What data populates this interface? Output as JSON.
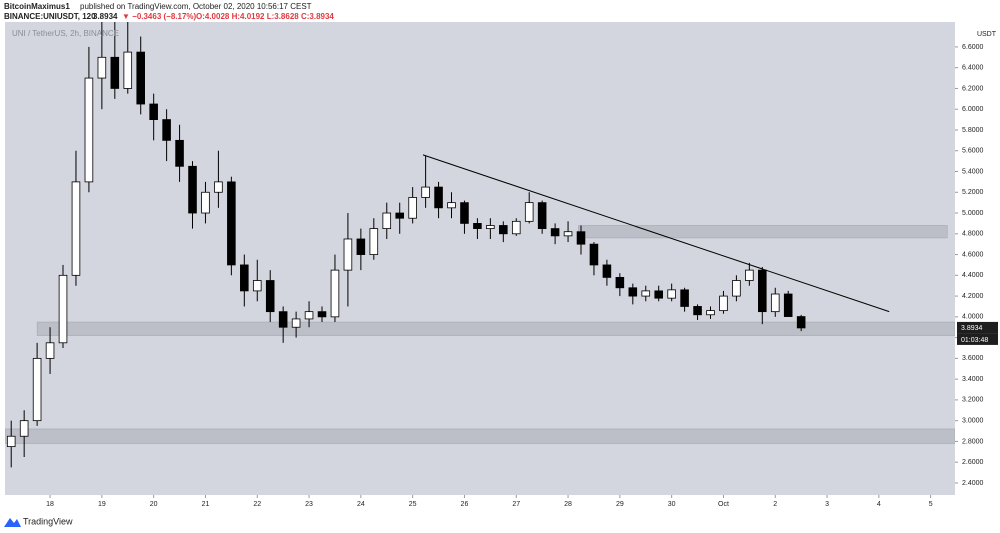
{
  "chart_data": {
    "type": "candlestick",
    "header": {
      "author": "BitcoinMaximus1",
      "published": "published on TradingView.com, October 02, 2020 10:56:17 CEST",
      "symbol": "BINANCE:UNIUSDT, 120",
      "price": "3.8934",
      "change": "▼ −0.3463 (−8.17%)",
      "ohlc": "O:4.0028 H:4.0192 L:3.8628 C:3.8934"
    },
    "legend": "UNI / TetherUS, 2h, BINANCE",
    "currency": "USDT",
    "last_price": {
      "value": 3.8934,
      "label": "3.8934"
    },
    "countdown": "01:03:48",
    "brand": "TradingView",
    "colors": {
      "background": "#d3d6de",
      "up": "#ffffff",
      "down": "#000000",
      "zone": "#b4b7bf",
      "trendline": "#000000"
    },
    "xlim": [
      17.13,
      35.47
    ],
    "xticks": [
      18,
      19,
      20,
      21,
      22,
      23,
      24,
      25,
      26,
      27,
      28,
      29,
      30,
      {
        "value": 31,
        "label": "Oct"
      },
      {
        "value": 32,
        "label": "2"
      },
      {
        "value": 33,
        "label": "3"
      },
      {
        "value": 34,
        "label": "4"
      },
      {
        "value": 35,
        "label": "5"
      }
    ],
    "ylim": [
      2.284,
      6.84
    ],
    "yticks": [
      {
        "value": 2.4,
        "label": "2.4000"
      },
      {
        "value": 2.6,
        "label": "2.6000"
      },
      {
        "value": 2.8,
        "label": "2.8000"
      },
      {
        "value": 3.0,
        "label": "3.0000"
      },
      {
        "value": 3.2,
        "label": "3.2000"
      },
      {
        "value": 3.4,
        "label": "3.4000"
      },
      {
        "value": 3.6,
        "label": "3.6000"
      },
      {
        "value": 3.8,
        "label": "3.8000"
      },
      {
        "value": 4.0,
        "label": "4.0000"
      },
      {
        "value": 4.2,
        "label": "4.2000"
      },
      {
        "value": 4.4,
        "label": "4.4000"
      },
      {
        "value": 4.6,
        "label": "4.6000"
      },
      {
        "value": 4.8,
        "label": "4.8000"
      },
      {
        "value": 5.0,
        "label": "5.0000"
      },
      {
        "value": 5.2,
        "label": "5.2000"
      },
      {
        "value": 5.4,
        "label": "5.4000"
      },
      {
        "value": 5.6,
        "label": "5.6000"
      },
      {
        "value": 5.8,
        "label": "5.8000"
      },
      {
        "value": 6.0,
        "label": "6.0000"
      },
      {
        "value": 6.2,
        "label": "6.2000"
      },
      {
        "value": 6.4,
        "label": "6.4000"
      },
      {
        "value": 6.6,
        "label": "6.6000"
      }
    ],
    "zones": [
      {
        "x": [
          17.75,
          35.47
        ],
        "y": [
          3.82,
          3.95
        ]
      },
      {
        "x": [
          17.13,
          35.47
        ],
        "y": [
          2.78,
          2.92
        ]
      },
      {
        "x": [
          28.2,
          35.32
        ],
        "y": [
          4.76,
          4.88
        ]
      }
    ],
    "trendline": {
      "x": [
        25.2,
        34.2
      ],
      "y": [
        5.56,
        4.05
      ]
    },
    "x": [
      17.25,
      17.5,
      17.75,
      18,
      18.25,
      18.5,
      18.75,
      19,
      19.25,
      19.5,
      19.75,
      20,
      20.25,
      20.5,
      20.75,
      21,
      21.25,
      21.5,
      21.75,
      22,
      22.25,
      22.5,
      22.75,
      23,
      23.25,
      23.5,
      23.75,
      24,
      24.25,
      24.5,
      24.75,
      25,
      25.25,
      25.5,
      25.75,
      26,
      26.25,
      26.5,
      26.75,
      27,
      27.25,
      27.5,
      27.75,
      28,
      28.25,
      28.5,
      28.75,
      29,
      29.25,
      29.5,
      29.75,
      30,
      30.25,
      30.5,
      30.75,
      31,
      31.25,
      31.5,
      31.75,
      32,
      32.25,
      32.5
    ],
    "open": [
      2.75,
      2.85,
      3.0,
      3.6,
      3.75,
      4.4,
      5.3,
      6.3,
      6.5,
      6.2,
      6.55,
      6.05,
      5.9,
      5.7,
      5.45,
      5.0,
      5.2,
      5.3,
      4.5,
      4.25,
      4.35,
      4.05,
      3.9,
      3.98,
      4.05,
      4.0,
      4.45,
      4.75,
      4.6,
      4.85,
      5.0,
      4.95,
      5.15,
      5.25,
      5.05,
      5.1,
      4.9,
      4.85,
      4.88,
      4.8,
      4.92,
      5.1,
      4.85,
      4.78,
      4.82,
      4.7,
      4.5,
      4.38,
      4.28,
      4.2,
      4.25,
      4.18,
      4.26,
      4.1,
      4.02,
      4.06,
      4.2,
      4.35,
      4.45,
      4.05,
      4.22,
      4.0028
    ],
    "high": [
      3.0,
      3.1,
      3.75,
      3.9,
      4.5,
      5.6,
      6.6,
      6.84,
      6.84,
      6.84,
      6.7,
      6.15,
      6.0,
      5.85,
      5.5,
      5.3,
      5.6,
      5.35,
      4.6,
      4.55,
      4.45,
      4.1,
      4.05,
      4.15,
      4.1,
      4.6,
      5.0,
      4.85,
      4.95,
      5.1,
      5.1,
      5.25,
      5.55,
      5.3,
      5.2,
      5.12,
      4.95,
      4.95,
      4.92,
      4.95,
      5.2,
      5.12,
      4.9,
      4.92,
      4.88,
      4.72,
      4.55,
      4.42,
      4.32,
      4.3,
      4.3,
      4.32,
      4.28,
      4.12,
      4.1,
      4.25,
      4.4,
      4.52,
      4.48,
      4.28,
      4.25,
      4.0192
    ],
    "low": [
      2.55,
      2.65,
      2.95,
      3.45,
      3.7,
      4.3,
      5.2,
      6.0,
      6.1,
      6.15,
      5.95,
      5.7,
      5.5,
      5.3,
      4.85,
      4.9,
      5.05,
      4.4,
      4.1,
      4.15,
      3.95,
      3.75,
      3.8,
      3.9,
      3.95,
      3.95,
      4.1,
      4.45,
      4.55,
      4.75,
      4.8,
      4.9,
      5.05,
      4.95,
      4.95,
      4.8,
      4.75,
      4.75,
      4.72,
      4.78,
      4.9,
      4.8,
      4.7,
      4.72,
      4.6,
      4.4,
      4.3,
      4.2,
      4.12,
      4.15,
      4.15,
      4.15,
      4.05,
      3.97,
      3.98,
      4.03,
      4.15,
      4.3,
      3.93,
      4.0,
      4.0,
      3.8628
    ],
    "close": [
      2.85,
      3.0,
      3.6,
      3.75,
      4.4,
      5.3,
      6.3,
      6.5,
      6.2,
      6.55,
      6.05,
      5.9,
      5.7,
      5.45,
      5.0,
      5.2,
      5.3,
      4.5,
      4.25,
      4.35,
      4.05,
      3.9,
      3.98,
      4.05,
      4.0,
      4.45,
      4.75,
      4.6,
      4.85,
      5.0,
      4.95,
      5.15,
      5.25,
      5.05,
      5.1,
      4.9,
      4.85,
      4.88,
      4.8,
      4.92,
      5.1,
      4.85,
      4.78,
      4.82,
      4.7,
      4.5,
      4.38,
      4.28,
      4.2,
      4.25,
      4.18,
      4.26,
      4.1,
      4.02,
      4.06,
      4.2,
      4.35,
      4.45,
      4.05,
      4.22,
      4.0028,
      3.8934
    ]
  }
}
